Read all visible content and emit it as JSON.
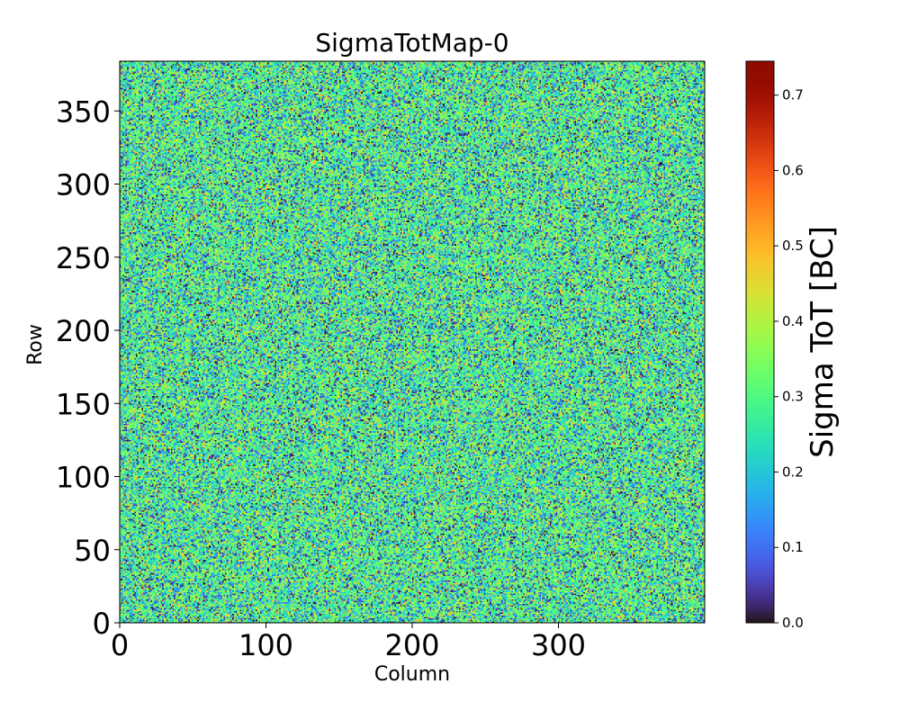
{
  "chart_data": {
    "type": "heatmap",
    "title": "SigmaTotMap-0",
    "xlabel": "Column",
    "ylabel": "Row",
    "xlim": [
      0,
      400
    ],
    "ylim": [
      0,
      384
    ],
    "xticks": [
      0,
      100,
      200,
      300
    ],
    "yticks": [
      0,
      50,
      100,
      150,
      200,
      250,
      300,
      350
    ],
    "colormap": "turbo",
    "colorbar": {
      "label": "Sigma ToT [BC]",
      "range": [
        0.0,
        0.745
      ],
      "ticks": [
        0.0,
        0.1,
        0.2,
        0.3,
        0.4,
        0.5,
        0.6,
        0.7
      ],
      "tick_labels": [
        "0.0",
        "0.1",
        "0.2",
        "0.3",
        "0.4",
        "0.5",
        "0.6",
        "0.7"
      ]
    },
    "value_distribution": {
      "description": "per-pixel noise, approximately uniform random values",
      "typical_min": 0.0,
      "typical_max": 0.55,
      "mode": 0.28
    }
  },
  "colors": {
    "background": "#ffffff",
    "axis": "#000000"
  }
}
